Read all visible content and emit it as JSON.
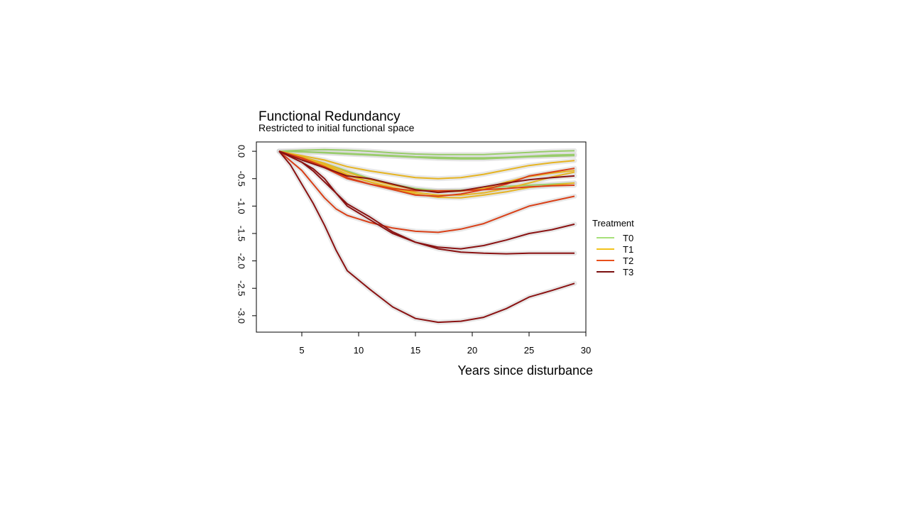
{
  "chart_data": {
    "type": "line",
    "title": "Functional Redundancy",
    "subtitle": "Restricted to initial functional space",
    "xlabel": "Years since disturbance",
    "ylabel": "",
    "xlim": [
      1,
      30
    ],
    "ylim": [
      -3.3,
      0.17
    ],
    "xticks": [
      5,
      10,
      15,
      20,
      25,
      30
    ],
    "yticks": [
      0.0,
      -0.5,
      -1.0,
      -1.5,
      -2.0,
      -2.5,
      -3.0
    ],
    "xtick_labels": [
      "5",
      "10",
      "15",
      "20",
      "25",
      "30"
    ],
    "ytick_labels": [
      "0.0",
      "-0.5",
      "-1.0",
      "-1.5",
      "-2.0",
      "-2.5",
      "-3.0"
    ],
    "grid": false,
    "legend": {
      "title": "Treatment",
      "placement": "right",
      "entries": [
        {
          "label": "T0",
          "color": "#a6e07a"
        },
        {
          "label": "T1",
          "color": "#f2c21b"
        },
        {
          "label": "T2",
          "color": "#e8501c"
        },
        {
          "label": "T3",
          "color": "#7a1010"
        }
      ]
    },
    "band_color": "#d9d9d9",
    "series": [
      {
        "treatment": "T0",
        "color": "#98cc6a",
        "x": [
          3,
          5,
          7,
          9,
          11,
          13,
          15,
          17,
          19,
          21,
          23,
          25,
          27,
          29
        ],
        "y": [
          0,
          0.02,
          0.03,
          0.02,
          0.0,
          -0.03,
          -0.05,
          -0.06,
          -0.06,
          -0.06,
          -0.04,
          -0.02,
          0.0,
          0.01
        ]
      },
      {
        "treatment": "T0",
        "color": "#98cc6a",
        "x": [
          3,
          5,
          7,
          9,
          11,
          13,
          15,
          17,
          19,
          21,
          23,
          25,
          27,
          29
        ],
        "y": [
          0,
          -0.01,
          -0.03,
          -0.05,
          -0.07,
          -0.09,
          -0.11,
          -0.13,
          -0.14,
          -0.14,
          -0.12,
          -0.1,
          -0.09,
          -0.08
        ]
      },
      {
        "treatment": "T0",
        "color": "#98cc6a",
        "x": [
          3,
          5,
          7,
          9,
          11,
          13,
          15,
          17,
          19,
          21,
          23,
          25,
          27,
          29
        ],
        "y": [
          0,
          -0.01,
          -0.02,
          -0.04,
          -0.06,
          -0.08,
          -0.1,
          -0.11,
          -0.12,
          -0.12,
          -0.11,
          -0.09,
          -0.07,
          -0.06
        ]
      },
      {
        "treatment": "T0",
        "color": "#98cc6a",
        "x": [
          3,
          5,
          7,
          9,
          11,
          13,
          15,
          17,
          19,
          21,
          23,
          25,
          27,
          29
        ],
        "y": [
          0,
          -0.1,
          -0.22,
          -0.36,
          -0.5,
          -0.6,
          -0.68,
          -0.72,
          -0.71,
          -0.68,
          -0.64,
          -0.62,
          -0.6,
          -0.58
        ]
      },
      {
        "treatment": "T1",
        "color": "#e6b422",
        "x": [
          3,
          5,
          7,
          9,
          11,
          13,
          15,
          17,
          19,
          21,
          23,
          25,
          27,
          29
        ],
        "y": [
          0,
          -0.08,
          -0.16,
          -0.28,
          -0.36,
          -0.42,
          -0.48,
          -0.5,
          -0.48,
          -0.42,
          -0.34,
          -0.26,
          -0.21,
          -0.17
        ]
      },
      {
        "treatment": "T1",
        "color": "#e6b422",
        "x": [
          3,
          5,
          7,
          9,
          11,
          13,
          15,
          17,
          19,
          21,
          23,
          25,
          27,
          29
        ],
        "y": [
          0,
          -0.12,
          -0.26,
          -0.44,
          -0.56,
          -0.66,
          -0.75,
          -0.8,
          -0.8,
          -0.76,
          -0.68,
          -0.58,
          -0.47,
          -0.38
        ]
      },
      {
        "treatment": "T1",
        "color": "#e6b422",
        "x": [
          3,
          5,
          7,
          9,
          11,
          13,
          15,
          17,
          19,
          21,
          23,
          25,
          27,
          29
        ],
        "y": [
          0,
          -0.11,
          -0.24,
          -0.42,
          -0.56,
          -0.68,
          -0.78,
          -0.84,
          -0.85,
          -0.8,
          -0.74,
          -0.66,
          -0.62,
          -0.58
        ]
      },
      {
        "treatment": "T1",
        "color": "#e6b422",
        "x": [
          3,
          5,
          7,
          9,
          11,
          13,
          15,
          17,
          19,
          21,
          23,
          25,
          27,
          29
        ],
        "y": [
          0,
          -0.1,
          -0.22,
          -0.38,
          -0.52,
          -0.62,
          -0.7,
          -0.74,
          -0.73,
          -0.68,
          -0.56,
          -0.46,
          -0.4,
          -0.35
        ]
      },
      {
        "treatment": "T2",
        "color": "#d94018",
        "x": [
          3,
          5,
          7,
          9,
          11,
          13,
          15,
          17,
          19,
          21,
          23,
          25,
          27,
          29
        ],
        "y": [
          0,
          -0.12,
          -0.28,
          -0.48,
          -0.6,
          -0.7,
          -0.8,
          -0.82,
          -0.78,
          -0.7,
          -0.6,
          -0.45,
          -0.38,
          -0.31
        ]
      },
      {
        "treatment": "T2",
        "color": "#d94018",
        "x": [
          3,
          5,
          7,
          9,
          11,
          13,
          15,
          17,
          19,
          21,
          23,
          25,
          27,
          29
        ],
        "y": [
          0,
          -0.13,
          -0.3,
          -0.5,
          -0.6,
          -0.68,
          -0.72,
          -0.72,
          -0.72,
          -0.7,
          -0.68,
          -0.65,
          -0.63,
          -0.62
        ]
      },
      {
        "treatment": "T2",
        "color": "#d94018",
        "x": [
          3,
          5,
          6,
          7,
          8,
          9,
          11,
          13,
          15,
          17,
          19,
          21,
          23,
          25,
          27,
          29
        ],
        "y": [
          0,
          -0.35,
          -0.6,
          -0.85,
          -1.05,
          -1.17,
          -1.3,
          -1.4,
          -1.46,
          -1.48,
          -1.42,
          -1.32,
          -1.16,
          -1.0,
          -0.91,
          -0.82
        ]
      },
      {
        "treatment": "T3",
        "color": "#8a1212",
        "x": [
          3,
          5,
          7,
          9,
          11,
          13,
          15,
          17,
          19,
          21,
          23,
          25,
          27,
          29
        ],
        "y": [
          0,
          -0.16,
          -0.3,
          -0.45,
          -0.5,
          -0.6,
          -0.7,
          -0.75,
          -0.72,
          -0.65,
          -0.58,
          -0.52,
          -0.48,
          -0.45
        ]
      },
      {
        "treatment": "T3",
        "color": "#8a1212",
        "x": [
          3,
          4,
          5,
          6,
          7,
          8,
          9,
          11,
          13,
          15,
          17,
          19,
          21,
          23,
          25,
          27,
          29
        ],
        "y": [
          0,
          -0.1,
          -0.2,
          -0.36,
          -0.56,
          -0.76,
          -1.0,
          -1.25,
          -1.5,
          -1.66,
          -1.75,
          -1.78,
          -1.72,
          -1.62,
          -1.5,
          -1.43,
          -1.33
        ]
      },
      {
        "treatment": "T3",
        "color": "#8a1212",
        "x": [
          3,
          4,
          5,
          6,
          7,
          8,
          9,
          11,
          13,
          15,
          17,
          19,
          21,
          23,
          25,
          27,
          29
        ],
        "y": [
          0,
          -0.1,
          -0.2,
          -0.32,
          -0.5,
          -0.76,
          -0.96,
          -1.2,
          -1.47,
          -1.66,
          -1.78,
          -1.84,
          -1.86,
          -1.87,
          -1.86,
          -1.86,
          -1.86
        ]
      },
      {
        "treatment": "T3",
        "color": "#8a1212",
        "x": [
          3,
          4,
          5,
          6,
          7,
          8,
          9,
          11,
          13,
          15,
          17,
          19,
          21,
          23,
          25,
          27,
          29
        ],
        "y": [
          0,
          -0.25,
          -0.6,
          -0.95,
          -1.35,
          -1.8,
          -2.18,
          -2.52,
          -2.84,
          -3.05,
          -3.12,
          -3.1,
          -3.03,
          -2.87,
          -2.66,
          -2.54,
          -2.41
        ]
      }
    ]
  }
}
